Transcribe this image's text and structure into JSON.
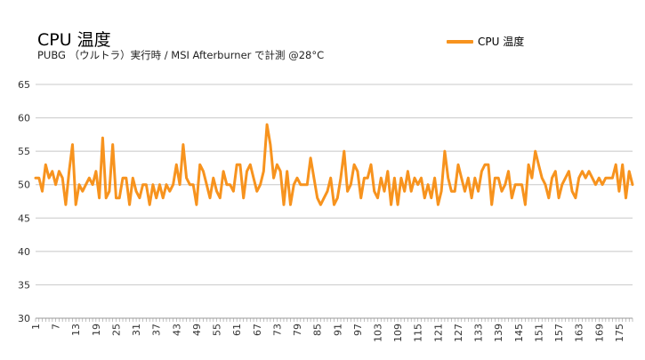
{
  "chart_data": {
    "type": "line",
    "title": "CPU 温度",
    "subtitle": "PUBG （ウルトラ）実行時 / MSI Afterburner で計測 @28°C",
    "legend_position": "top-right",
    "grid": true,
    "color": "#f7931e",
    "ylim": [
      30,
      65
    ],
    "yticks": [
      30,
      35,
      40,
      45,
      50,
      55,
      60,
      65
    ],
    "x_start": 1,
    "x_tick_step": 6,
    "series": [
      {
        "name": "CPU 温度",
        "values": [
          51,
          51,
          49,
          53,
          51,
          52,
          50,
          52,
          51,
          47,
          52,
          56,
          47,
          50,
          49,
          50,
          51,
          50,
          52,
          48,
          57,
          48,
          49,
          56,
          48,
          48,
          51,
          51,
          47,
          51,
          49,
          48,
          50,
          50,
          47,
          50,
          48,
          50,
          48,
          50,
          49,
          50,
          53,
          50,
          56,
          51,
          50,
          50,
          47,
          53,
          52,
          50,
          48,
          51,
          49,
          48,
          52,
          50,
          50,
          49,
          53,
          53,
          48,
          52,
          53,
          51,
          49,
          50,
          52,
          59,
          56,
          51,
          53,
          52,
          47,
          52,
          47,
          50,
          51,
          50,
          50,
          50,
          54,
          51,
          48,
          47,
          48,
          49,
          51,
          47,
          48,
          51,
          55,
          49,
          50,
          53,
          52,
          48,
          51,
          51,
          53,
          49,
          48,
          51,
          49,
          52,
          47,
          51,
          47,
          51,
          49,
          52,
          49,
          51,
          50,
          51,
          48,
          50,
          48,
          51,
          47,
          49,
          55,
          51,
          49,
          49,
          53,
          51,
          49,
          51,
          48,
          51,
          49,
          52,
          53,
          53,
          47,
          51,
          51,
          49,
          50,
          52,
          48,
          50,
          50,
          50,
          47,
          53,
          51,
          55,
          53,
          51,
          50,
          48,
          51,
          52,
          48,
          50,
          51,
          52,
          49,
          48,
          51,
          52,
          51,
          52,
          51,
          50,
          51,
          50,
          51,
          51,
          51,
          53,
          49,
          53,
          48,
          52,
          50
        ]
      }
    ]
  }
}
